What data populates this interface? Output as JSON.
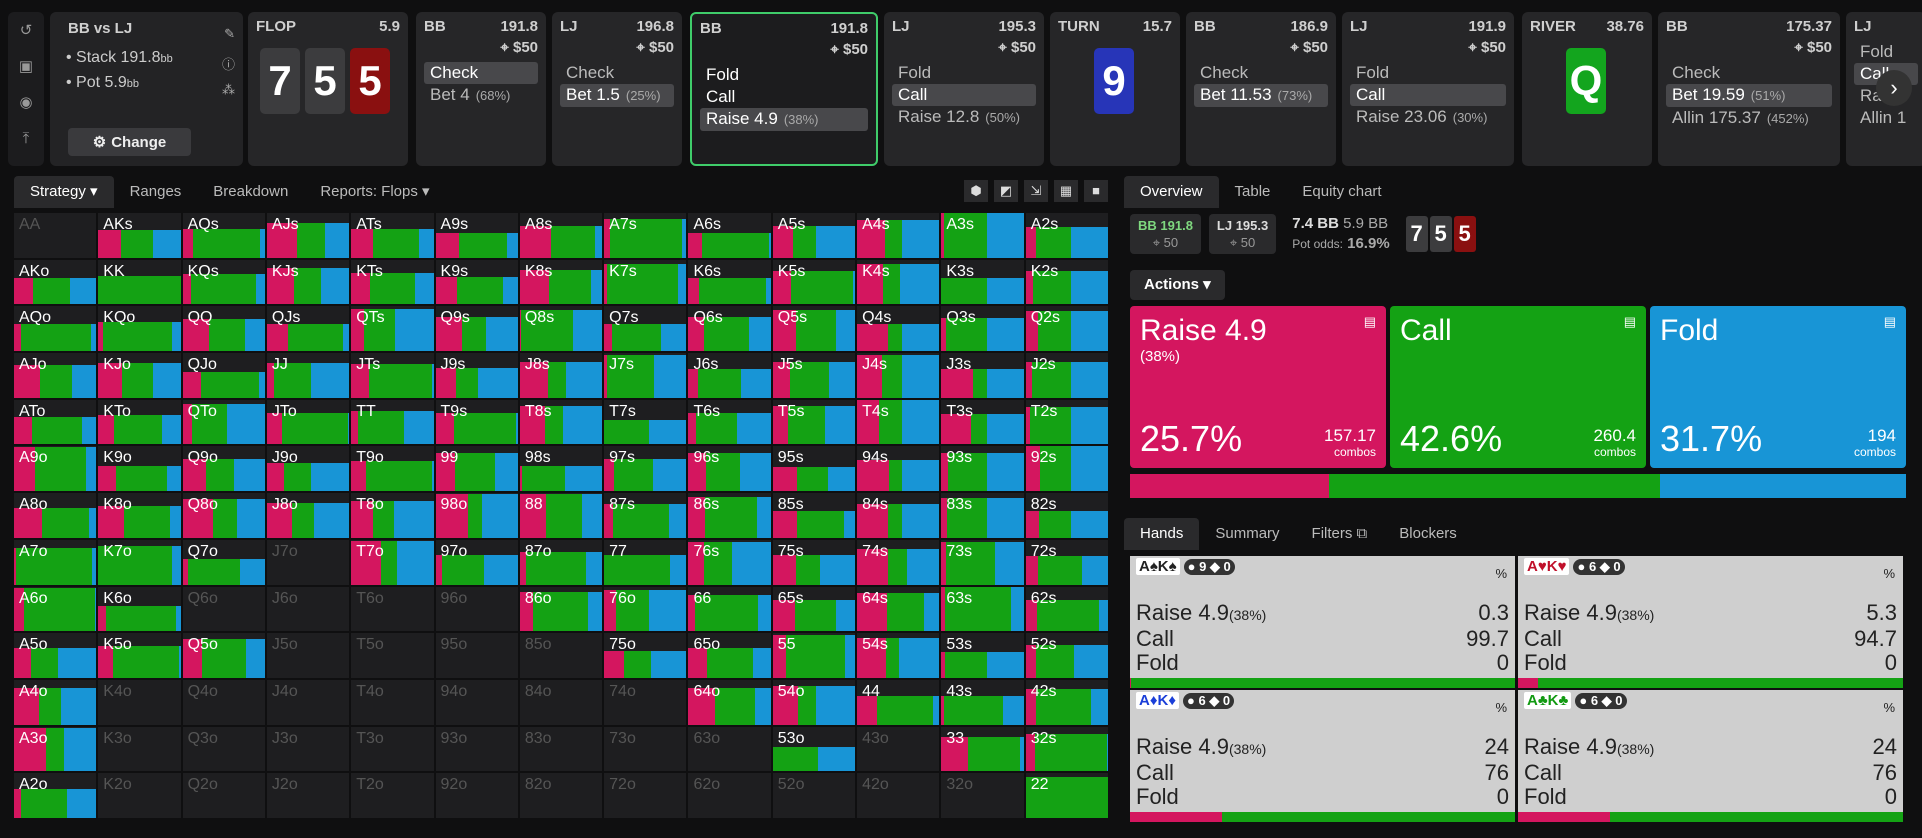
{
  "colors": {
    "raise": "#d4165f",
    "call": "#14a214",
    "fold": "#1895d6",
    "check": "#14a214"
  },
  "sidebar": {
    "icons": [
      "undo-icon",
      "save-icon",
      "gamepad-icon",
      "collapse-icon"
    ]
  },
  "header": {
    "title": "BB vs LJ",
    "stack_label": "Stack 191.8",
    "stack_unit": "bb",
    "pot_label": "Pot 5.9",
    "pot_unit": "bb",
    "change_label": "Change"
  },
  "steps": [
    {
      "player": "FLOP",
      "value": "5.9",
      "cards": [
        "7",
        "5",
        "5"
      ]
    },
    {
      "player": "BB",
      "value": "191.8",
      "sub": "⌖ $50",
      "actions": [
        {
          "t": "Check",
          "sel": true
        },
        {
          "t": "Bet 4",
          "p": "(68%)"
        }
      ]
    },
    {
      "player": "LJ",
      "value": "196.8",
      "sub": "⌖ $50",
      "actions": [
        {
          "t": "Check"
        },
        {
          "t": "Bet 1.5",
          "p": "(25%)",
          "sel": true
        }
      ]
    },
    {
      "player": "BB",
      "value": "191.8",
      "sub": "⌖ $50",
      "actions": [
        {
          "t": "Fold"
        },
        {
          "t": "Call"
        },
        {
          "t": "Raise 4.9",
          "p": "(38%)",
          "sel": true
        }
      ]
    },
    {
      "player": "LJ",
      "value": "195.3",
      "sub": "⌖ $50",
      "actions": [
        {
          "t": "Fold"
        },
        {
          "t": "Call",
          "sel": true
        },
        {
          "t": "Raise 12.8",
          "p": "(50%)"
        }
      ]
    },
    {
      "player": "TURN",
      "value": "15.7",
      "cards": [
        "9"
      ]
    },
    {
      "player": "BB",
      "value": "186.9",
      "sub": "⌖ $50",
      "actions": [
        {
          "t": "Check"
        },
        {
          "t": "Bet 11.53",
          "p": "(73%)",
          "sel": true
        }
      ]
    },
    {
      "player": "LJ",
      "value": "191.9",
      "sub": "⌖ $50",
      "actions": [
        {
          "t": "Fold"
        },
        {
          "t": "Call",
          "sel": true
        },
        {
          "t": "Raise 23.06",
          "p": "(30%)"
        }
      ]
    },
    {
      "player": "RIVER",
      "value": "38.76",
      "cards": [
        "Q"
      ]
    },
    {
      "player": "BB",
      "value": "175.37",
      "sub": "⌖ $50",
      "actions": [
        {
          "t": "Check"
        },
        {
          "t": "Bet 19.59",
          "p": "(51%)",
          "sel": true
        },
        {
          "t": "Allin 175.37",
          "p": "(452%)"
        }
      ]
    },
    {
      "player": "LJ",
      "value": "",
      "sub": "",
      "actions": [
        {
          "t": "Fold"
        },
        {
          "t": "Call",
          "sel": true
        },
        {
          "t": "Raise"
        },
        {
          "t": "Allin 1"
        }
      ]
    }
  ],
  "left_tabs": [
    "Strategy",
    "Ranges",
    "Breakdown",
    "Reports: Flops"
  ],
  "grid_labels": [
    "AA",
    "AKs",
    "AQs",
    "AJs",
    "ATs",
    "A9s",
    "A8s",
    "A7s",
    "A6s",
    "A5s",
    "A4s",
    "A3s",
    "A2s",
    "AKo",
    "KK",
    "KQs",
    "KJs",
    "KTs",
    "K9s",
    "K8s",
    "K7s",
    "K6s",
    "K5s",
    "K4s",
    "K3s",
    "K2s",
    "AQo",
    "KQo",
    "QQ",
    "QJs",
    "QTs",
    "Q9s",
    "Q8s",
    "Q7s",
    "Q6s",
    "Q5s",
    "Q4s",
    "Q3s",
    "Q2s",
    "AJo",
    "KJo",
    "QJo",
    "JJ",
    "JTs",
    "J9s",
    "J8s",
    "J7s",
    "J6s",
    "J5s",
    "J4s",
    "J3s",
    "J2s",
    "ATo",
    "KTo",
    "QTo",
    "JTo",
    "TT",
    "T9s",
    "T8s",
    "T7s",
    "T6s",
    "T5s",
    "T4s",
    "T3s",
    "T2s",
    "A9o",
    "K9o",
    "Q9o",
    "J9o",
    "T9o",
    "99",
    "98s",
    "97s",
    "96s",
    "95s",
    "94s",
    "93s",
    "92s",
    "A8o",
    "K8o",
    "Q8o",
    "J8o",
    "T8o",
    "98o",
    "88",
    "87s",
    "86s",
    "85s",
    "84s",
    "83s",
    "82s",
    "A7o",
    "K7o",
    "Q7o",
    "J7o",
    "T7o",
    "97o",
    "87o",
    "77",
    "76s",
    "75s",
    "74s",
    "73s",
    "72s",
    "A6o",
    "K6o",
    "Q6o",
    "J6o",
    "T6o",
    "96o",
    "86o",
    "76o",
    "66",
    "65s",
    "64s",
    "63s",
    "62s",
    "A5o",
    "K5o",
    "Q5o",
    "J5o",
    "T5o",
    "95o",
    "85o",
    "75o",
    "65o",
    "55",
    "54s",
    "53s",
    "52s",
    "A4o",
    "K4o",
    "Q4o",
    "J4o",
    "T4o",
    "94o",
    "84o",
    "74o",
    "64o",
    "54o",
    "44",
    "43s",
    "42s",
    "A3o",
    "K3o",
    "Q3o",
    "J3o",
    "T3o",
    "93o",
    "83o",
    "73o",
    "63o",
    "53o",
    "43o",
    "33",
    "32s",
    "A2o",
    "K2o",
    "Q2o",
    "J2o",
    "T2o",
    "92o",
    "82o",
    "72o",
    "62o",
    "52o",
    "42o",
    "32o",
    "22"
  ],
  "right_tabs": [
    "Overview",
    "Table",
    "Equity chart"
  ],
  "info": {
    "p1": "BB 191.8",
    "p1s": "⌖ 50",
    "p2": "LJ 195.3",
    "p2s": "⌖ 50",
    "bet": "7.4 BB",
    "pot": "5.9 BB",
    "odds_label": "Pot odds:",
    "odds": "16.9%",
    "cards": [
      "7",
      "5",
      "5"
    ]
  },
  "actions_label": "Actions",
  "actions": [
    {
      "name": "Raise 4.9",
      "sub": "(38%)",
      "pct": "25.7%",
      "combos": "157.17",
      "unit": "combos",
      "color": "#d4165f",
      "frac": 0.257
    },
    {
      "name": "Call",
      "sub": "",
      "pct": "42.6%",
      "combos": "260.4",
      "unit": "combos",
      "color": "#14a214",
      "frac": 0.426
    },
    {
      "name": "Fold",
      "sub": "",
      "pct": "31.7%",
      "combos": "194",
      "unit": "combos",
      "color": "#1895d6",
      "frac": 0.317
    }
  ],
  "hand_tabs": [
    "Hands",
    "Summary",
    "Filters",
    "Blockers"
  ],
  "hands": [
    {
      "cards": "A♠K♠",
      "c": "#222",
      "b1": "9",
      "b2": "0",
      "raise": "0.3",
      "call": "99.7",
      "fold": "0"
    },
    {
      "cards": "A♥K♥",
      "c": "#c0102a",
      "b1": "6",
      "b2": "0",
      "raise": "5.3",
      "call": "94.7",
      "fold": "0"
    },
    {
      "cards": "A♦K♦",
      "c": "#1b3fd8",
      "b1": "6",
      "b2": "0",
      "raise": "24",
      "call": "76",
      "fold": "0"
    },
    {
      "cards": "A♣K♣",
      "c": "#129a12",
      "b1": "6",
      "b2": "0",
      "raise": "24",
      "call": "76",
      "fold": "0"
    }
  ],
  "hand_labels": {
    "raise": "Raise 4.9",
    "raise_sub": "(38%)",
    "call": "Call",
    "fold": "Fold",
    "pct": "%"
  }
}
